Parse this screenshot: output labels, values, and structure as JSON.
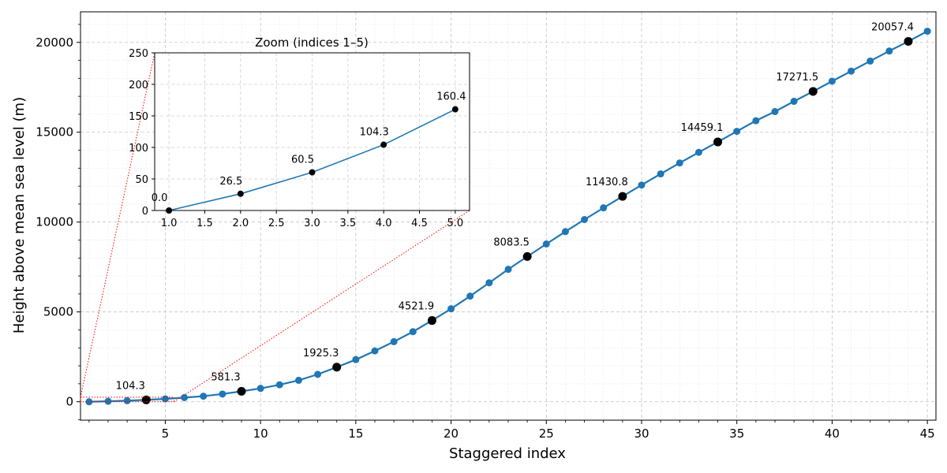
{
  "chart_data": [
    {
      "type": "line",
      "title": "",
      "xlabel": "Staggered index",
      "ylabel": "Height above mean sea level (m)",
      "xlim": [
        0.55,
        45.45
      ],
      "ylim": [
        -1025,
        21700
      ],
      "x_ticks": [
        5,
        10,
        15,
        20,
        25,
        30,
        35,
        40,
        45
      ],
      "x_tick_labels": [
        "5",
        "10",
        "15",
        "20",
        "25",
        "30",
        "35",
        "40",
        "45"
      ],
      "y_ticks": [
        0,
        5000,
        10000,
        15000,
        20000
      ],
      "y_tick_labels": [
        "0",
        "5000",
        "10000",
        "15000",
        "20000"
      ],
      "grid": true,
      "line_color": "#1f77b4",
      "highlight_color": "#000000",
      "series": [
        {
          "x": [
            1,
            2,
            3,
            4,
            5,
            6,
            7,
            8,
            9,
            10,
            11,
            12,
            13,
            14,
            15,
            16,
            17,
            18,
            19,
            20,
            21,
            22,
            23,
            24,
            25,
            26,
            27,
            28,
            29,
            30,
            31,
            32,
            33,
            34,
            35,
            36,
            37,
            38,
            39,
            40,
            41,
            42,
            43,
            44,
            45
          ],
          "values": [
            0.0,
            26.5,
            60.5,
            104.3,
            160.4,
            232,
            310,
            430,
            581.3,
            745,
            945,
            1195,
            1525,
            1925.3,
            2345,
            2830,
            3345,
            3900,
            4521.9,
            5175,
            5880,
            6620,
            7370,
            8083.5,
            8780,
            9470,
            10140,
            10790,
            11430.8,
            12060,
            12680,
            13290,
            13880,
            14459.1,
            15050,
            15640,
            16150,
            16720,
            17271.5,
            17840,
            18400,
            18960,
            19520,
            20057.4,
            20620
          ]
        }
      ],
      "highlighted_points": {
        "x": [
          4,
          9,
          14,
          19,
          24,
          29,
          34,
          39,
          44
        ],
        "values": [
          104.3,
          581.3,
          1925.3,
          4521.9,
          8083.5,
          11430.8,
          14459.1,
          17271.5,
          20057.4
        ],
        "labels": [
          "104.3",
          "581.3",
          "1925.3",
          "4521.9",
          "8083.5",
          "11430.8",
          "14459.1",
          "17271.5",
          "20057.4"
        ]
      },
      "zoom_region": {
        "xlim": [
          0.55,
          5.45
        ],
        "ylim": [
          0,
          250
        ],
        "color": "#ff0000"
      }
    },
    {
      "type": "line",
      "title": "Zoom (indices 1–5)",
      "xlim": [
        0.8,
        5.2
      ],
      "ylim": [
        0,
        250
      ],
      "x_ticks": [
        1.0,
        1.5,
        2.0,
        2.5,
        3.0,
        3.5,
        4.0,
        4.5,
        5.0
      ],
      "x_tick_labels": [
        "1.0",
        "1.5",
        "2.0",
        "2.5",
        "3.0",
        "3.5",
        "4.0",
        "4.5",
        "5.0"
      ],
      "y_ticks": [
        0,
        50,
        100,
        150,
        200,
        250
      ],
      "y_tick_labels": [
        "0",
        "50",
        "100",
        "150",
        "200",
        "250"
      ],
      "grid": true,
      "series": [
        {
          "x": [
            1,
            2,
            3,
            4,
            5
          ],
          "values": [
            0.0,
            26.5,
            60.5,
            104.3,
            160.4
          ],
          "labels": [
            "0.0",
            "26.5",
            "60.5",
            "104.3",
            "160.4"
          ]
        }
      ]
    }
  ]
}
